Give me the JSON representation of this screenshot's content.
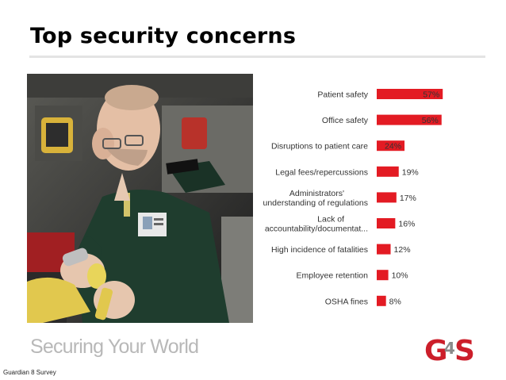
{
  "page": {
    "title": "Top security concerns",
    "tagline": "Securing Your World",
    "source": "Guardian 8 Survey"
  },
  "logo": {
    "text": "G4S",
    "color": "#cc1e2a"
  },
  "chart_data": {
    "type": "bar",
    "orientation": "horizontal",
    "title": "",
    "xlabel": "",
    "ylabel": "",
    "xlim": [
      0,
      60
    ],
    "grid": false,
    "bar_color": "#e31b23",
    "categories": [
      "Patient safety",
      "Office safety",
      "Disruptions to patient care",
      "Legal fees/repercussions",
      "Administrators' understanding of regulations",
      "Lack of accountability/documentat...",
      "High incidence of fatalities",
      "Employee retention",
      "OSHA fines"
    ],
    "category_lines": [
      [
        "Patient safety"
      ],
      [
        "Office safety"
      ],
      [
        "Disruptions to patient care"
      ],
      [
        "Legal fees/repercussions"
      ],
      [
        "Administrators'",
        "understanding of regulations"
      ],
      [
        "Lack of",
        "accountability/documentat..."
      ],
      [
        "High incidence of fatalities"
      ],
      [
        "Employee retention"
      ],
      [
        "OSHA fines"
      ]
    ],
    "values": [
      57,
      56,
      24,
      19,
      17,
      16,
      12,
      10,
      8
    ],
    "value_labels": [
      "57%",
      "56%",
      "24%",
      "19%",
      "17%",
      "16%",
      "12%",
      "10%",
      "8%"
    ]
  }
}
